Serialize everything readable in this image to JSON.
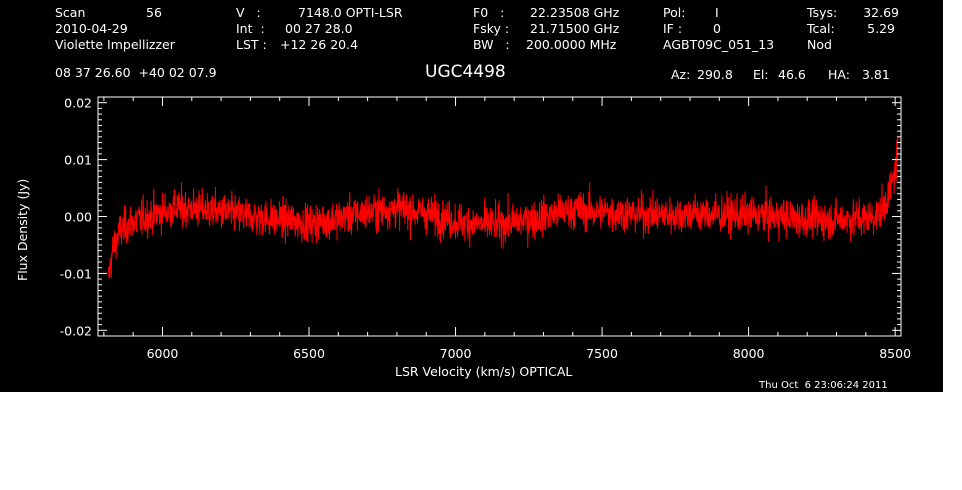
{
  "header": {
    "col1": {
      "scan_label": "Scan",
      "scan_value": "56",
      "date": "2010-04-29",
      "observer": "Violette Impellizzer"
    },
    "col2": {
      "v_label": "V   :",
      "v_value": "7148.0 OPTI-LSR",
      "int_label": "Int  :",
      "int_value": "00 27 28.0",
      "lst_label": "LST :",
      "lst_value": "+12 26 20.4"
    },
    "col3": {
      "f0_label": "F0   :",
      "f0_value": "22.23508 GHz",
      "fsky_label": "Fsky :",
      "fsky_value": "21.71500 GHz",
      "bw_label": "BW   :",
      "bw_value": "200.0000 MHz"
    },
    "col4": {
      "pol_label": "Pol:",
      "pol_value": "I",
      "if_label": "IF :",
      "if_value": "0",
      "project": "AGBT09C_051_13"
    },
    "col5": {
      "tsys_label": "Tsys:",
      "tsys_value": "32.69",
      "tcal_label": "Tcal:",
      "tcal_value": "5.29",
      "mode": "Nod"
    },
    "coords": "08 37 26.60  +40 02 07.9",
    "source": "UGC4498",
    "az_label": "Az:",
    "az_value": "290.8",
    "el_label": "El:",
    "el_value": "46.6",
    "ha_label": "HA:",
    "ha_value": "3.81",
    "timestamp": "Thu Oct  6 23:06:24 2011"
  },
  "colors": {
    "background": "#000000",
    "axes": "#ffffff",
    "trace": "#ff0000"
  },
  "chart_data": {
    "type": "line",
    "title": "UGC4498",
    "xlabel": "LSR Velocity (km/s) OPTICAL",
    "ylabel": "Flux Density (Jy)",
    "xlim": [
      5780,
      8520
    ],
    "ylim": [
      -0.021,
      0.021
    ],
    "xticks": [
      6000,
      6500,
      7000,
      7500,
      8000,
      8500
    ],
    "xtick_labels": [
      "6000",
      "6500",
      "7000",
      "7500",
      "8000",
      "8500"
    ],
    "yticks": [
      -0.02,
      -0.01,
      0.0,
      0.01,
      0.02
    ],
    "ytick_labels": [
      "-0.02",
      "-0.01",
      "0.00",
      "0.01",
      "0.02"
    ],
    "grid": false,
    "series": [
      {
        "color": "#ff0000",
        "noise_rms": 0.0022,
        "x": [
          5815,
          5830,
          5850,
          5880,
          5920,
          5980,
          6050,
          6100,
          6200,
          6300,
          6400,
          6500,
          6600,
          6700,
          6800,
          6900,
          7000,
          7100,
          7200,
          7300,
          7400,
          7500,
          7600,
          7700,
          7800,
          7900,
          8000,
          8100,
          8200,
          8300,
          8400,
          8450,
          8480,
          8500,
          8510
        ],
        "y": [
          -0.011,
          -0.006,
          -0.003,
          -0.0015,
          -0.0005,
          0.0005,
          0.0015,
          0.0015,
          0.0008,
          0.0,
          -0.0005,
          -0.0012,
          -0.0003,
          0.0008,
          0.0015,
          0.0005,
          -0.0008,
          -0.0015,
          -0.001,
          0.0,
          0.0012,
          0.0008,
          0.0005,
          0.0003,
          0.0005,
          0.0003,
          0.0003,
          0.0,
          -0.0005,
          -0.0005,
          -0.0003,
          0.0005,
          0.004,
          0.008,
          0.012
        ]
      }
    ]
  }
}
